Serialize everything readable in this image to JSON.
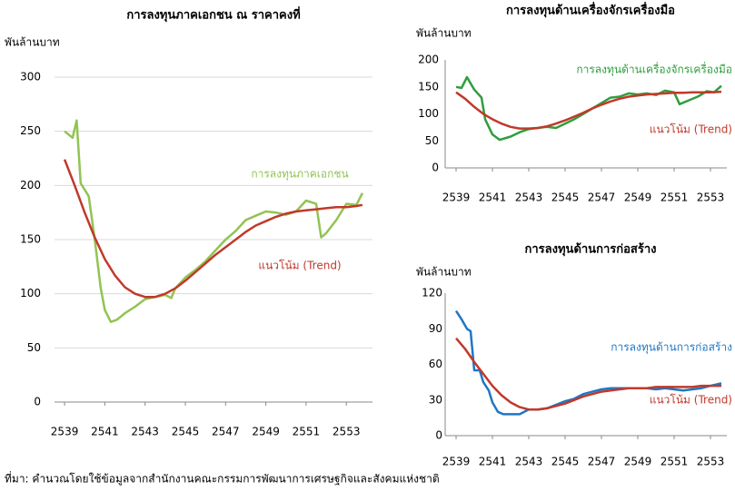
{
  "chart_data": [
    {
      "type": "line",
      "title": "การลงทุนภาคเอกชน ณ ราคาคงที่",
      "y_label": "พันล้านบาท",
      "xlim": [
        2538.5,
        2554.3
      ],
      "xticks": [
        2539,
        2541,
        2543,
        2545,
        2547,
        2549,
        2551,
        2553
      ],
      "ylim": [
        0,
        300
      ],
      "yticks": [
        0,
        50,
        100,
        150,
        200,
        250,
        300
      ],
      "grid": true,
      "series": [
        {
          "name": "การลงทุนภาคเอกชน",
          "color": "#92c353",
          "x": [
            2539,
            2539.4,
            2539.6,
            2539.8,
            2540.2,
            2540.5,
            2540.8,
            2541,
            2541.3,
            2541.6,
            2542,
            2542.5,
            2543,
            2543.5,
            2544,
            2544.3,
            2544.5,
            2545,
            2545.5,
            2546,
            2546.5,
            2547,
            2547.5,
            2548,
            2548.5,
            2549,
            2549.5,
            2550,
            2550.5,
            2551,
            2551.5,
            2551.75,
            2552,
            2552.5,
            2553,
            2553.5,
            2553.8
          ],
          "values": [
            250,
            244,
            260,
            202,
            190,
            150,
            105,
            85,
            74,
            76,
            82,
            88,
            95,
            97,
            99,
            96,
            105,
            115,
            122,
            130,
            140,
            150,
            158,
            168,
            172,
            176,
            175,
            173,
            176,
            186,
            183,
            152,
            156,
            168,
            183,
            182,
            193
          ]
        },
        {
          "name": "แนวโน้ม (Trend)",
          "color": "#c0392b",
          "x": [
            2539,
            2539.5,
            2540,
            2540.5,
            2541,
            2541.5,
            2542,
            2542.5,
            2543,
            2543.5,
            2544,
            2544.5,
            2545,
            2545.5,
            2546,
            2546.5,
            2547,
            2547.5,
            2548,
            2548.5,
            2549,
            2549.5,
            2550,
            2550.5,
            2551,
            2551.5,
            2552,
            2552.5,
            2553,
            2553.5,
            2553.8
          ],
          "values": [
            224,
            200,
            175,
            152,
            132,
            117,
            106,
            100,
            97,
            97,
            100,
            105,
            112,
            120,
            128,
            136,
            143,
            150,
            157,
            163,
            167,
            171,
            174,
            176,
            177,
            178,
            179,
            180,
            180,
            181,
            182
          ]
        }
      ]
    },
    {
      "type": "line",
      "title": "การลงทุนด้านเครื่องจักรเครื่องมือ",
      "y_label": "พันล้านบาท",
      "xlim": [
        2538.4,
        2553.9
      ],
      "xticks": [
        2539,
        2541,
        2543,
        2545,
        2547,
        2549,
        2551,
        2553
      ],
      "ylim": [
        0,
        200
      ],
      "yticks": [
        0,
        50,
        100,
        150,
        200
      ],
      "grid": false,
      "series": [
        {
          "name": "การลงทุนด้านเครื่องจักรเครื่องมือ",
          "color": "#2e9e3e",
          "x": [
            2539,
            2539.3,
            2539.6,
            2540,
            2540.4,
            2540.6,
            2541,
            2541.4,
            2542,
            2542.5,
            2543,
            2543.5,
            2544,
            2544.5,
            2545,
            2545.5,
            2546,
            2546.5,
            2547,
            2547.5,
            2548,
            2548.5,
            2549,
            2549.5,
            2550,
            2550.5,
            2551,
            2551.3,
            2551.8,
            2552.3,
            2552.8,
            2553.2,
            2553.6
          ],
          "values": [
            150,
            148,
            168,
            145,
            130,
            90,
            62,
            52,
            58,
            66,
            72,
            74,
            76,
            74,
            82,
            90,
            100,
            110,
            120,
            130,
            132,
            138,
            136,
            138,
            135,
            143,
            140,
            118,
            125,
            132,
            142,
            140,
            152
          ]
        },
        {
          "name": "แนวโน้ม (Trend)",
          "color": "#c0392b",
          "x": [
            2539,
            2539.5,
            2540,
            2540.5,
            2541,
            2541.5,
            2542,
            2542.5,
            2543,
            2543.5,
            2544,
            2544.5,
            2545,
            2545.5,
            2546,
            2546.5,
            2547,
            2547.5,
            2548,
            2548.5,
            2549,
            2549.5,
            2550,
            2550.5,
            2551,
            2551.5,
            2552,
            2552.5,
            2553,
            2553.6
          ],
          "values": [
            140,
            128,
            113,
            100,
            90,
            82,
            76,
            73,
            73,
            74,
            77,
            82,
            88,
            95,
            102,
            110,
            117,
            123,
            128,
            132,
            134,
            136,
            137,
            138,
            139,
            139,
            140,
            140,
            140,
            141
          ]
        }
      ]
    },
    {
      "type": "line",
      "title": "การลงทุนด้านการก่อสร้าง",
      "y_label": "พันล้านบาท",
      "xlim": [
        2538.4,
        2553.9
      ],
      "xticks": [
        2539,
        2541,
        2543,
        2545,
        2547,
        2549,
        2551,
        2553
      ],
      "ylim": [
        0,
        120
      ],
      "yticks": [
        0,
        30,
        60,
        90,
        120
      ],
      "grid": false,
      "series": [
        {
          "name": "การลงทุนด้านการก่อสร้าง",
          "color": "#1f77c4",
          "x": [
            2539,
            2539.3,
            2539.6,
            2539.8,
            2540,
            2540.3,
            2540.5,
            2540.8,
            2541,
            2541.3,
            2541.6,
            2542,
            2542.5,
            2543,
            2543.5,
            2544,
            2544.5,
            2545,
            2545.5,
            2546,
            2546.5,
            2547,
            2547.5,
            2548,
            2548.5,
            2549,
            2549.5,
            2550,
            2550.5,
            2551,
            2551.5,
            2552,
            2552.5,
            2553,
            2553.6
          ],
          "values": [
            105,
            98,
            90,
            88,
            55,
            55,
            45,
            38,
            28,
            20,
            18,
            18,
            18,
            22,
            22,
            23,
            26,
            29,
            31,
            35,
            37,
            39,
            40,
            40,
            40,
            40,
            40,
            39,
            40,
            39,
            38,
            39,
            40,
            42,
            44
          ]
        },
        {
          "name": "แนวโน้ม (Trend)",
          "color": "#c0392b",
          "x": [
            2539,
            2539.5,
            2540,
            2540.5,
            2541,
            2541.5,
            2542,
            2542.5,
            2543,
            2543.5,
            2544,
            2544.5,
            2545,
            2545.5,
            2546,
            2546.5,
            2547,
            2547.5,
            2548,
            2548.5,
            2549,
            2549.5,
            2550,
            2550.5,
            2551,
            2551.5,
            2552,
            2552.5,
            2553,
            2553.6
          ],
          "values": [
            82,
            73,
            62,
            52,
            42,
            34,
            28,
            24,
            22,
            22,
            23,
            25,
            27,
            30,
            33,
            35,
            37,
            38,
            39,
            40,
            40,
            40,
            41,
            41,
            41,
            41,
            41,
            42,
            42,
            42
          ]
        }
      ]
    }
  ],
  "source": "ที่มา: คำนวณโดยใช้ข้อมูลจากสำนักงานคณะกรรมการพัฒนาการเศรษฐกิจและสังคมแห่งชาติ"
}
